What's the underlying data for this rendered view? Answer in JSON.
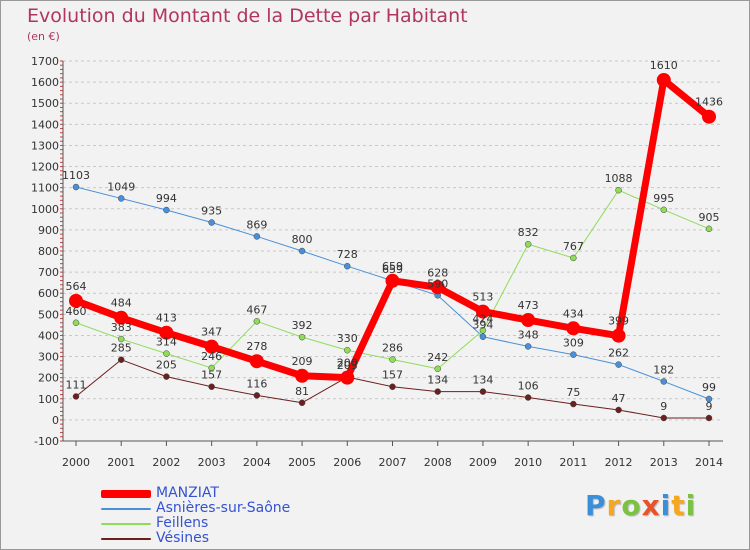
{
  "chart_data": {
    "type": "line",
    "title": "Evolution du Montant de la Dette par Habitant",
    "unit_label": "(en €)",
    "x": [
      "2000",
      "2001",
      "2002",
      "2003",
      "2004",
      "2005",
      "2006",
      "2007",
      "2008",
      "2009",
      "2010",
      "2011",
      "2012",
      "2013",
      "2014"
    ],
    "ylim": [
      -100,
      1700
    ],
    "yticks": [
      -100,
      0,
      100,
      200,
      300,
      400,
      500,
      600,
      700,
      800,
      900,
      1000,
      1100,
      1200,
      1300,
      1400,
      1500,
      1600,
      1700
    ],
    "grid": "horizontal dashed",
    "legend_position": "bottom-left",
    "series": [
      {
        "name": "Asnières-sur-Saône",
        "color": "#4a90d9",
        "width": 1,
        "values": [
          1103,
          1049,
          994,
          935,
          869,
          800,
          728,
          659,
          590,
          394,
          348,
          309,
          262,
          182,
          99
        ]
      },
      {
        "name": "Feillens",
        "color": "#8fdc5a",
        "width": 1,
        "values": [
          460,
          383,
          314,
          246,
          467,
          392,
          330,
          286,
          242,
          424,
          832,
          767,
          1088,
          995,
          905
        ]
      },
      {
        "name": "Vésines",
        "color": "#6b1f1f",
        "width": 1,
        "values": [
          111,
          285,
          205,
          157,
          116,
          81,
          203,
          157,
          134,
          134,
          106,
          75,
          47,
          9,
          9
        ]
      },
      {
        "name": "MANZIAT",
        "color": "#ff0000",
        "width": 7,
        "values": [
          564,
          484,
          413,
          347,
          278,
          209,
          200,
          659,
          628,
          513,
          473,
          434,
          399,
          1610,
          1436
        ]
      }
    ]
  },
  "legend_order": [
    "MANZIAT",
    "Asnières-sur-Saône",
    "Feillens",
    "Vésines"
  ],
  "logo": {
    "letters": [
      "P",
      "r",
      "o",
      "x",
      "i",
      "t",
      "i"
    ],
    "colors": [
      "#3a8fd8",
      "#f5a623",
      "#7cc242",
      "#e8542a",
      "#3a8fd8",
      "#f5a623",
      "#7cc242"
    ]
  }
}
